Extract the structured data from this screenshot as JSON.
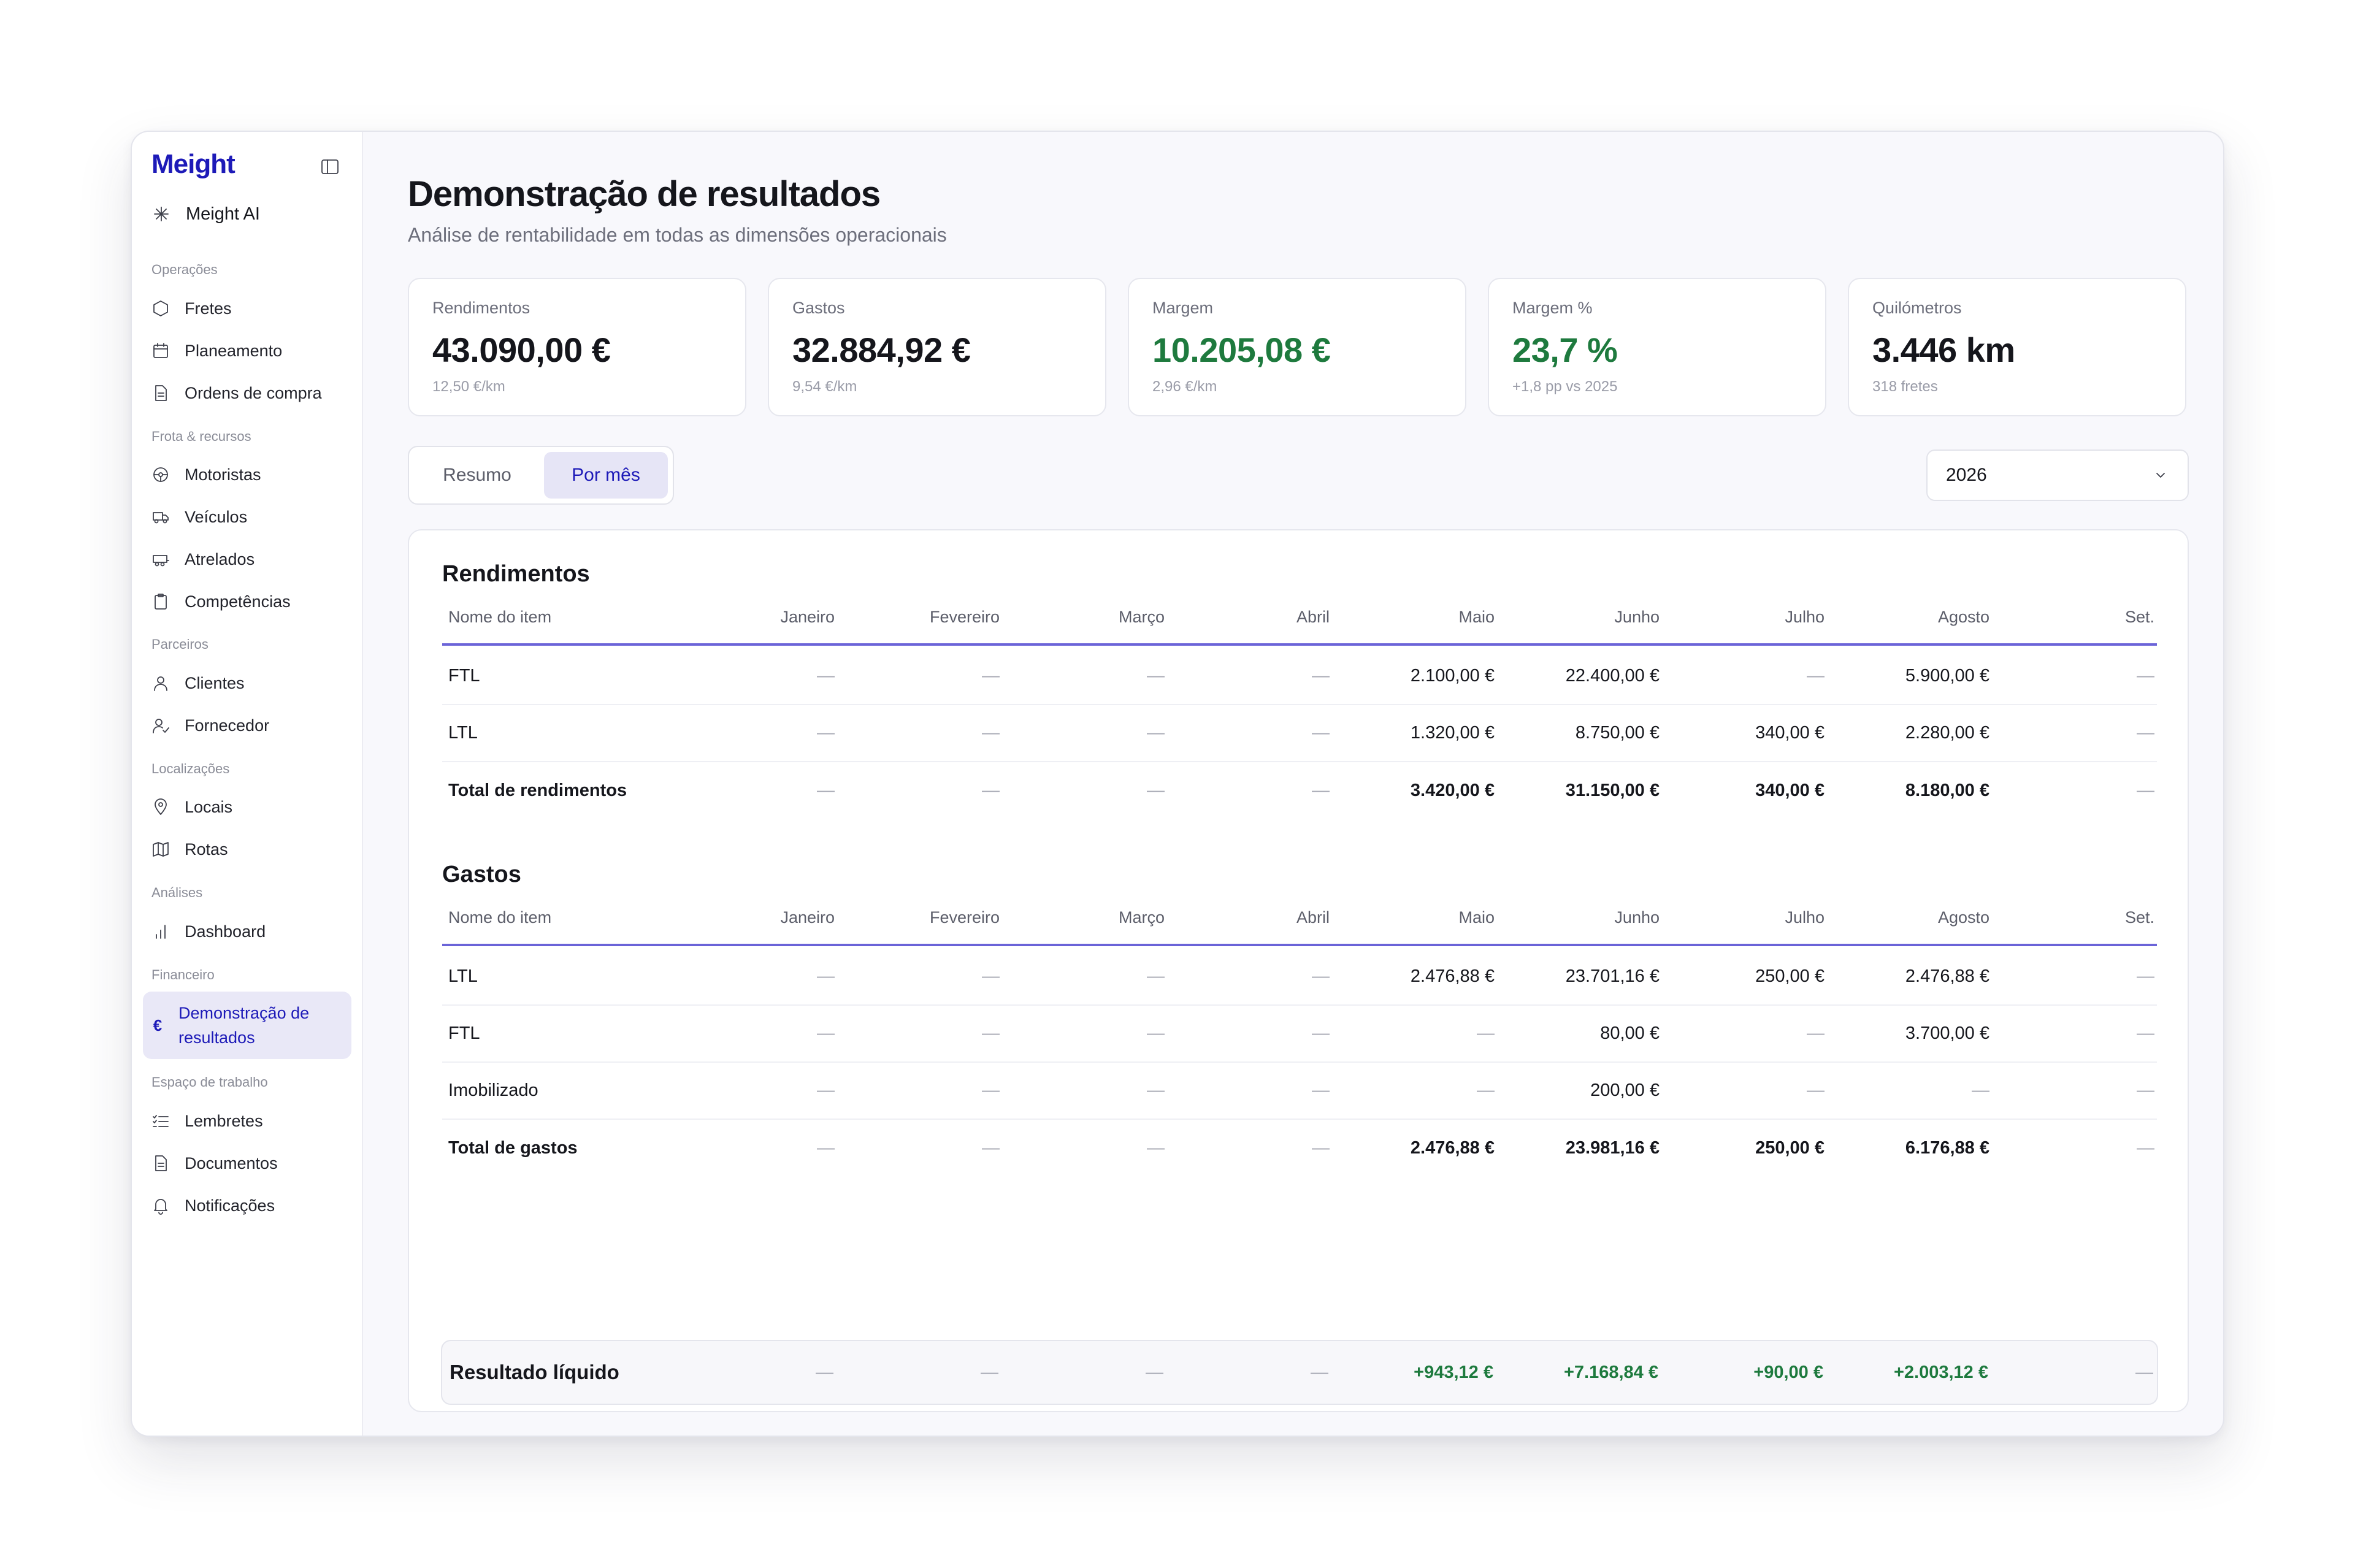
{
  "app": {
    "brand": "Meight",
    "ai_label": "Meight AI"
  },
  "sidebar": {
    "sections": [
      {
        "title": "Operações",
        "items": [
          {
            "label": "Fretes",
            "icon": "box-icon"
          },
          {
            "label": "Planeamento",
            "icon": "calendar-icon"
          },
          {
            "label": "Ordens de compra",
            "icon": "document-icon"
          }
        ]
      },
      {
        "title": "Frota & recursos",
        "items": [
          {
            "label": "Motoristas",
            "icon": "steering-wheel-icon"
          },
          {
            "label": "Veículos",
            "icon": "truck-icon"
          },
          {
            "label": "Atrelados",
            "icon": "trailer-icon"
          },
          {
            "label": "Competências",
            "icon": "clipboard-icon"
          }
        ]
      },
      {
        "title": "Parceiros",
        "items": [
          {
            "label": "Clientes",
            "icon": "user-icon"
          },
          {
            "label": "Fornecedor",
            "icon": "user-check-icon"
          }
        ]
      },
      {
        "title": "Localizações",
        "items": [
          {
            "label": "Locais",
            "icon": "map-pin-icon"
          },
          {
            "label": "Rotas",
            "icon": "map-icon"
          }
        ]
      },
      {
        "title": "Análises",
        "items": [
          {
            "label": "Dashboard",
            "icon": "bar-chart-icon"
          }
        ]
      },
      {
        "title": "Financeiro",
        "items": [
          {
            "label": "Demonstração de resultados",
            "icon": "euro-icon",
            "active": true
          }
        ]
      },
      {
        "title": "Espaço de trabalho",
        "items": [
          {
            "label": "Lembretes",
            "icon": "checklist-icon"
          },
          {
            "label": "Documentos",
            "icon": "document-icon"
          },
          {
            "label": "Notificações",
            "icon": "bell-icon"
          }
        ]
      }
    ]
  },
  "page": {
    "title": "Demonstração de resultados",
    "subtitle": "Análise de rentabilidade em todas as dimensões operacionais"
  },
  "kpis": [
    {
      "label": "Rendimentos",
      "value": "43.090,00 €",
      "sub": "12,50 €/km",
      "green": false
    },
    {
      "label": "Gastos",
      "value": "32.884,92 €",
      "sub": "9,54 €/km",
      "green": false
    },
    {
      "label": "Margem",
      "value": "10.205,08 €",
      "sub": "2,96 €/km",
      "green": true
    },
    {
      "label": "Margem %",
      "value": "23,7 %",
      "sub": "+1,8 pp vs 2025",
      "green": true
    },
    {
      "label": "Quilómetros",
      "value": "3.446 km",
      "sub": "318 fretes",
      "green": false
    }
  ],
  "tabs": [
    {
      "label": "Resumo",
      "active": false
    },
    {
      "label": "Por mês",
      "active": true
    }
  ],
  "year_select": {
    "value": "2026"
  },
  "colors": {
    "accent": "#1d1ab8",
    "positive": "#1e7a3e",
    "header_rule": "#6b64d8"
  },
  "columns": [
    "Nome do item",
    "Janeiro",
    "Fevereiro",
    "Março",
    "Abril",
    "Maio",
    "Junho",
    "Julho",
    "Agosto",
    "Set."
  ],
  "income": {
    "title": "Rendimentos",
    "rows": [
      {
        "name": "FTL",
        "values": [
          "—",
          "—",
          "—",
          "—",
          "2.100,00 €",
          "22.400,00 €",
          "—",
          "5.900,00 €",
          "—"
        ]
      },
      {
        "name": "LTL",
        "values": [
          "—",
          "—",
          "—",
          "—",
          "1.320,00 €",
          "8.750,00 €",
          "340,00 €",
          "2.280,00 €",
          "—"
        ]
      }
    ],
    "total": {
      "name": "Total de rendimentos",
      "values": [
        "—",
        "—",
        "—",
        "—",
        "3.420,00 €",
        "31.150,00 €",
        "340,00 €",
        "8.180,00 €",
        "—"
      ]
    }
  },
  "expenses": {
    "title": "Gastos",
    "rows": [
      {
        "name": "LTL",
        "values": [
          "—",
          "—",
          "—",
          "—",
          "2.476,88 €",
          "23.701,16 €",
          "250,00 €",
          "2.476,88 €",
          "—"
        ]
      },
      {
        "name": "FTL",
        "values": [
          "—",
          "—",
          "—",
          "—",
          "—",
          "80,00 €",
          "—",
          "3.700,00 €",
          "—"
        ]
      },
      {
        "name": "Imobilizado",
        "values": [
          "—",
          "—",
          "—",
          "—",
          "—",
          "200,00 €",
          "—",
          "—",
          "—"
        ]
      }
    ],
    "total": {
      "name": "Total de gastos",
      "values": [
        "—",
        "—",
        "—",
        "—",
        "2.476,88 €",
        "23.981,16 €",
        "250,00 €",
        "6.176,88 €",
        "—"
      ]
    }
  },
  "net_result": {
    "name": "Resultado líquido",
    "values": [
      "—",
      "—",
      "—",
      "—",
      "+943,12 €",
      "+7.168,84 €",
      "+90,00 €",
      "+2.003,12 €",
      "—"
    ]
  }
}
